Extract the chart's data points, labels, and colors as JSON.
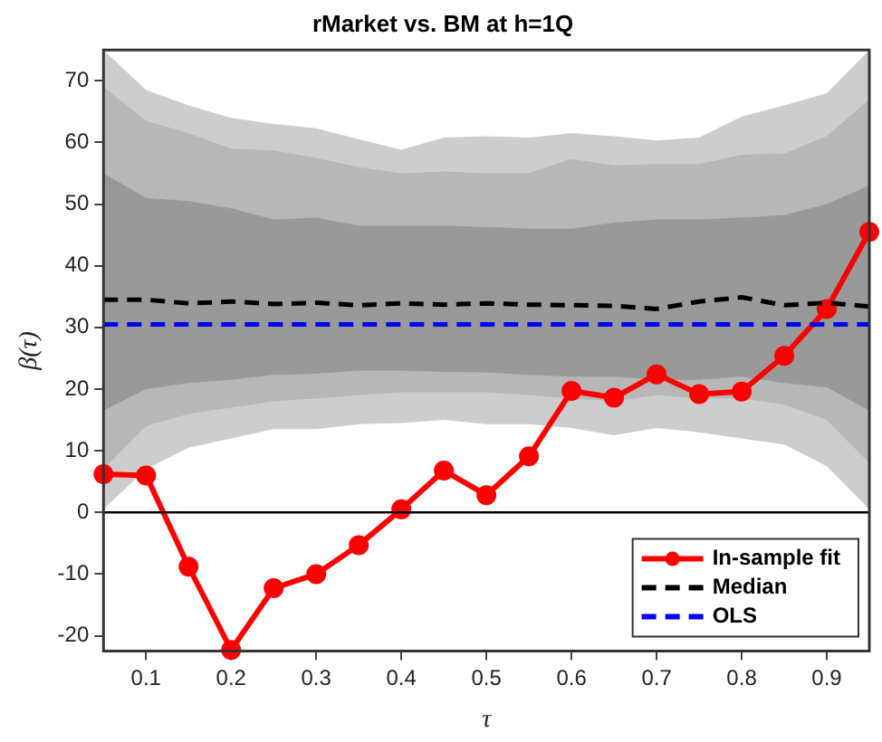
{
  "chart_data": {
    "type": "line",
    "title": "rMarket vs. BM at h=1Q",
    "xlabel": "τ",
    "ylabel": "β(τ)",
    "x": [
      0.05,
      0.1,
      0.15,
      0.2,
      0.25,
      0.3,
      0.35,
      0.4,
      0.45,
      0.5,
      0.55,
      0.6,
      0.65,
      0.7,
      0.75,
      0.8,
      0.85,
      0.9,
      0.95
    ],
    "xlim": [
      0.05,
      0.95
    ],
    "xticks": [
      0.1,
      0.2,
      0.3,
      0.4,
      0.5,
      0.6,
      0.7,
      0.8,
      0.9
    ],
    "ylim": [
      -22.5,
      75
    ],
    "yticks": [
      -20,
      -10,
      0,
      10,
      20,
      30,
      40,
      50,
      60,
      70
    ],
    "grid": false,
    "legend": "bottom right",
    "ref_lines": [
      {
        "axis": "y",
        "value": 0,
        "color": "#000000"
      }
    ],
    "series": [
      {
        "type": "area",
        "color": "#cdcdcd",
        "values": [
          null,
          null,
          null,
          null,
          null,
          null,
          null,
          null,
          null,
          null,
          null,
          null,
          null,
          null,
          null,
          null,
          null,
          null,
          null
        ],
        "lower": [
          0.5,
          7,
          10.5,
          12,
          13.5,
          13.5,
          14.3,
          14.5,
          15,
          14.3,
          14.3,
          13.7,
          12.5,
          13.7,
          13,
          12,
          11,
          7.5,
          0.5
        ],
        "upper": [
          75,
          68.5,
          66,
          64,
          63,
          62.3,
          60.5,
          58.8,
          60.8,
          61,
          60.8,
          61.5,
          61,
          60.3,
          60.8,
          64.2,
          66,
          68,
          75
        ]
      },
      {
        "type": "area",
        "color": "#b7b7b7",
        "values": [
          null,
          null,
          null,
          null,
          null,
          null,
          null,
          null,
          null,
          null,
          null,
          null,
          null,
          null,
          null,
          null,
          null,
          null,
          null
        ],
        "lower": [
          7,
          14,
          16,
          17,
          18,
          18.5,
          19,
          19.5,
          19.5,
          19.5,
          19,
          18.5,
          18,
          19,
          18.5,
          18.5,
          17.5,
          15,
          8
        ],
        "upper": [
          69,
          63.5,
          61.5,
          59,
          58.7,
          57.5,
          56,
          55,
          55.3,
          55,
          55,
          57.3,
          56.3,
          56.5,
          56.5,
          58,
          58.2,
          61,
          67
        ]
      },
      {
        "type": "area",
        "color": "#999999",
        "values": [
          null,
          null,
          null,
          null,
          null,
          null,
          null,
          null,
          null,
          null,
          null,
          null,
          null,
          null,
          null,
          null,
          null,
          null,
          null
        ],
        "lower": [
          16.5,
          20,
          21,
          21.5,
          22.3,
          22.5,
          23,
          23,
          22.8,
          22.7,
          22.3,
          22,
          22,
          21.5,
          21.5,
          22,
          21,
          20.3,
          16.5
        ],
        "upper": [
          55,
          51,
          50.5,
          49.3,
          47.5,
          47.8,
          46.5,
          46.5,
          46.5,
          46.3,
          46,
          46,
          47,
          47.5,
          47.5,
          47.8,
          48.2,
          50,
          53
        ]
      },
      {
        "name": "In-sample fit",
        "color": "#ff0000",
        "marker": "circle",
        "line_style": "solid",
        "values": [
          6.2,
          6,
          -8.8,
          -22.3,
          -12.3,
          -10,
          -5.3,
          0.5,
          6.8,
          2.8,
          9.1,
          19.7,
          18.6,
          22.4,
          19.2,
          19.6,
          25.4,
          33,
          45.5
        ]
      },
      {
        "name": "Median",
        "color": "#000000",
        "marker": "none",
        "line_style": "dashed",
        "values": [
          34.5,
          34.5,
          33.9,
          34.2,
          33.8,
          34,
          33.6,
          33.9,
          33.7,
          33.9,
          33.7,
          33.6,
          33.5,
          33,
          34.2,
          34.9,
          33.6,
          34,
          33.4
        ]
      },
      {
        "name": "OLS",
        "color": "#0000ff",
        "marker": "none",
        "line_style": "dashed",
        "values": [
          30.5,
          30.5,
          30.5,
          30.5,
          30.5,
          30.5,
          30.5,
          30.5,
          30.5,
          30.5,
          30.5,
          30.5,
          30.5,
          30.5,
          30.5,
          30.5,
          30.5,
          30.5,
          30.5
        ]
      }
    ]
  }
}
